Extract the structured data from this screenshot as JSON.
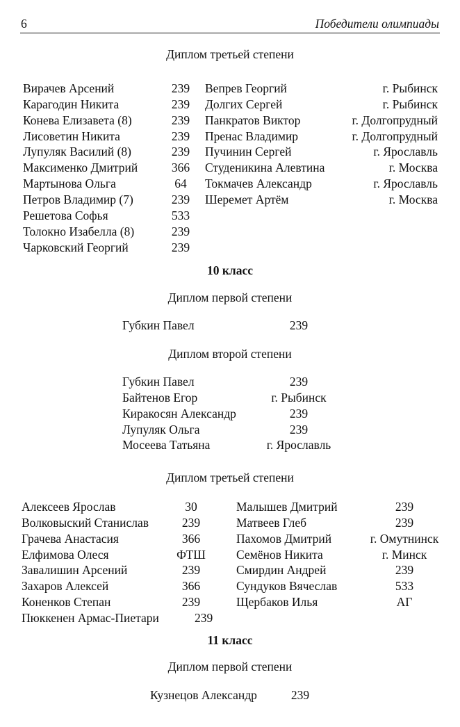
{
  "header": {
    "page_number": "6",
    "running_title": "Победители олимпиады"
  },
  "section_top": {
    "diploma_title": "Диплом третьей степени",
    "left": [
      {
        "name": "Вирачев Арсений",
        "value": "239"
      },
      {
        "name": "Карагодин Никита",
        "value": "239"
      },
      {
        "name": "Конева Елизавета (8)",
        "value": "239"
      },
      {
        "name": "Лисоветин Никита",
        "value": "239"
      },
      {
        "name": "Лупуляк Василий (8)",
        "value": "239"
      },
      {
        "name": "Максименко Дмитрий",
        "value": "366"
      },
      {
        "name": "Мартынова Ольга",
        "value": "64"
      },
      {
        "name": "Петров Владимир (7)",
        "value": "239"
      },
      {
        "name": "Решетова Софья",
        "value": "533"
      },
      {
        "name": "Толокно Изабелла (8)",
        "value": "239"
      },
      {
        "name": "Чарковский Георгий",
        "value": "239"
      }
    ],
    "right": [
      {
        "name": "Вепрев Георгий",
        "value": "г. Рыбинск"
      },
      {
        "name": "Долгих Сергей",
        "value": "г. Рыбинск"
      },
      {
        "name": "Панкратов Виктор",
        "value": "г. Долгопрудный"
      },
      {
        "name": "Пренас Владимир",
        "value": "г. Долгопрудный"
      },
      {
        "name": "Пучинин Сергей",
        "value": "г. Ярославль"
      },
      {
        "name": "Студеникина Алевтина",
        "value": "г. Москва"
      },
      {
        "name": "Токмачев Александр",
        "value": "г. Ярославль"
      },
      {
        "name": "Шеремет Артём",
        "value": "г. Москва"
      }
    ]
  },
  "grade10": {
    "title": "10 класс",
    "first": {
      "title": "Диплом первой степени",
      "rows": [
        {
          "name": "Губкин Павел",
          "value": "239"
        }
      ]
    },
    "second": {
      "title": "Диплом второй степени",
      "rows": [
        {
          "name": "Губкин Павел",
          "value": "239"
        },
        {
          "name": "Байтенов Егор",
          "value": "г. Рыбинск"
        },
        {
          "name": "Киракосян Александр",
          "value": "239"
        },
        {
          "name": "Лупуляк Ольга",
          "value": "239"
        },
        {
          "name": "Мосеева Татьяна",
          "value": "г. Ярославль"
        }
      ]
    },
    "third": {
      "title": "Диплом третьей степени",
      "left": [
        {
          "name": "Алексеев Ярослав",
          "value": "30"
        },
        {
          "name": "Волковыский Станислав",
          "value": "239"
        },
        {
          "name": "Грачева Анастасия",
          "value": "366"
        },
        {
          "name": "Елфимова Олеся",
          "value": "ФТШ"
        },
        {
          "name": "Завалишин Арсений",
          "value": "239"
        },
        {
          "name": "Захаров Алексей",
          "value": "366"
        },
        {
          "name": "Коненков Степан",
          "value": "239"
        }
      ],
      "right": [
        {
          "name": "Малышев Дмитрий",
          "value": "239"
        },
        {
          "name": "Матвеев Глеб",
          "value": "239"
        },
        {
          "name": "Пахомов Дмитрий",
          "value": "г. Омутнинск"
        },
        {
          "name": "Семёнов Никита",
          "value": "г. Минск"
        },
        {
          "name": "Смирдин Андрей",
          "value": "239"
        },
        {
          "name": "Сундуков Вячеслав",
          "value": "533"
        },
        {
          "name": "Щербаков Илья",
          "value": "АГ"
        }
      ],
      "last": {
        "name": "Пюккенен Армас-Пиетари",
        "value": "239"
      }
    }
  },
  "grade11": {
    "title": "11 класс",
    "first": {
      "title": "Диплом первой степени",
      "rows": [
        {
          "name": "Кузнецов Александр",
          "value": "239"
        }
      ]
    }
  }
}
